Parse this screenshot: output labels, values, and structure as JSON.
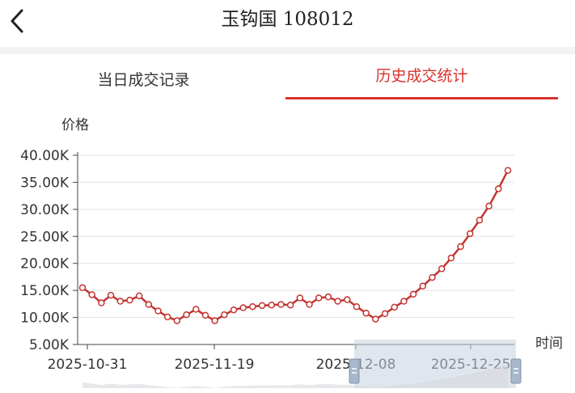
{
  "header": {
    "title": "玉钩国 108012"
  },
  "tabs": [
    {
      "label": "当日成交记录",
      "active": false
    },
    {
      "label": "历史成交统计",
      "active": true
    }
  ],
  "colors": {
    "accent": "#d8322c",
    "line": "#c23531",
    "zoom_bar": "#c7d2e0"
  },
  "chart_data": {
    "type": "line",
    "ylabel": "价格",
    "xlabel": "时间",
    "ylim": [
      5000,
      40000
    ],
    "yticks": [
      "5.00K",
      "10.00K",
      "15.00K",
      "20.00K",
      "25.00K",
      "30.00K",
      "35.00K",
      "40.00K"
    ],
    "xticks": [
      "2025-10-31",
      "2025-11-19",
      "2025-12-08",
      "2025-12-25"
    ],
    "series": [
      {
        "values": [
          15500,
          14200,
          12700,
          14100,
          13000,
          13200,
          14000,
          12400,
          11200,
          10100,
          9400,
          10500,
          11500,
          10400,
          9400,
          10500,
          11400,
          11800,
          12000,
          12200,
          12300,
          12400,
          12300,
          13600,
          12400,
          13600,
          13800,
          13000,
          13300,
          12000,
          10800,
          9700,
          10700,
          11900,
          13000,
          14300,
          15800,
          17400,
          19000,
          21000,
          23100,
          25500,
          28000,
          30600,
          33800,
          37200
        ]
      }
    ]
  }
}
